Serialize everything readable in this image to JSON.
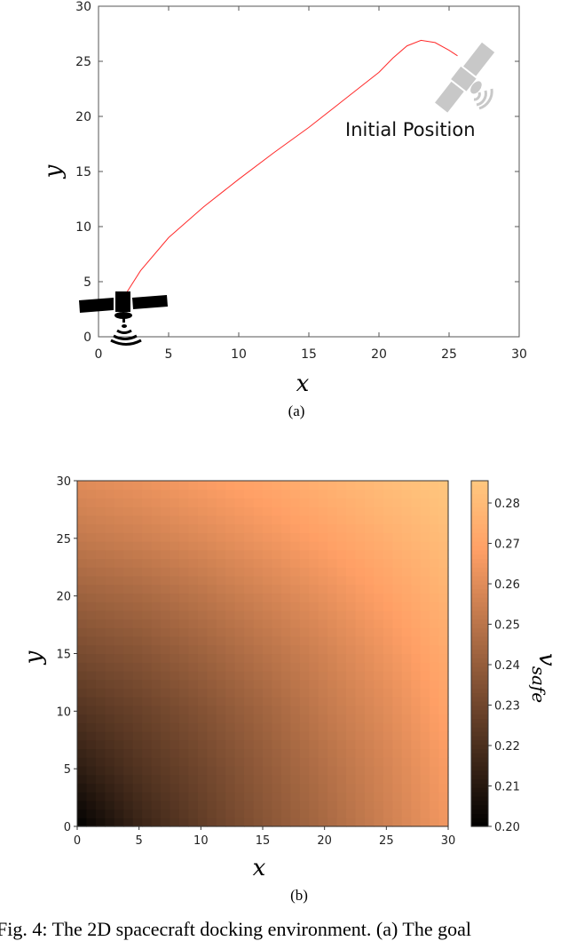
{
  "chart_data": [
    {
      "type": "line",
      "panel_label": "(a)",
      "xlabel": "x",
      "ylabel": "y",
      "xlim": [
        0,
        30
      ],
      "ylim": [
        0,
        30
      ],
      "xticks": [
        "0",
        "5",
        "10",
        "15",
        "20",
        "25",
        "30"
      ],
      "yticks": [
        "0",
        "5",
        "10",
        "15",
        "20",
        "25",
        "30"
      ],
      "grid": false,
      "series": [
        {
          "color": "#ff2a2a",
          "x": [
            2,
            3,
            5,
            7.5,
            10,
            12.5,
            15,
            17.5,
            20,
            21,
            22,
            23,
            24,
            25,
            25.6
          ],
          "y": [
            4,
            6,
            9,
            11.8,
            14.3,
            16.7,
            19,
            21.5,
            24,
            25.3,
            26.4,
            26.9,
            26.7,
            26,
            25.5
          ]
        }
      ],
      "annotations": [
        {
          "text": "Initial Position",
          "icon": "satellite-icon-gray"
        },
        {
          "text": "",
          "icon": "satellite-icon-black"
        }
      ]
    },
    {
      "type": "heatmap",
      "panel_label": "(b)",
      "xlabel": "x",
      "ylabel": "y",
      "xlim": [
        0,
        30
      ],
      "ylim": [
        0,
        30
      ],
      "xticks": [
        "0",
        "5",
        "10",
        "15",
        "20",
        "25",
        "30"
      ],
      "yticks": [
        "0",
        "5",
        "10",
        "15",
        "20",
        "25",
        "30"
      ],
      "colormap": "copper",
      "colorbar": {
        "label": "v_safe",
        "label_main": "v",
        "label_sub": "safe",
        "range": [
          0.2,
          0.2855
        ],
        "ticks": [
          "0.20",
          "0.21",
          "0.22",
          "0.23",
          "0.24",
          "0.25",
          "0.26",
          "0.27",
          "0.28"
        ]
      },
      "grid_x": [
        0,
        5,
        10,
        15,
        20,
        25,
        30
      ],
      "grid_y": [
        0,
        5,
        10,
        15,
        20,
        25,
        30
      ],
      "values": [
        [
          0.2,
          0.215,
          0.226,
          0.236,
          0.245,
          0.255,
          0.265
        ],
        [
          0.212,
          0.222,
          0.23,
          0.239,
          0.248,
          0.257,
          0.267
        ],
        [
          0.222,
          0.228,
          0.235,
          0.243,
          0.252,
          0.26,
          0.27
        ],
        [
          0.232,
          0.236,
          0.242,
          0.249,
          0.256,
          0.264,
          0.273
        ],
        [
          0.242,
          0.245,
          0.25,
          0.256,
          0.262,
          0.269,
          0.277
        ],
        [
          0.252,
          0.255,
          0.259,
          0.264,
          0.269,
          0.275,
          0.281
        ],
        [
          0.26,
          0.263,
          0.267,
          0.271,
          0.276,
          0.281,
          0.285
        ]
      ]
    }
  ],
  "caption": "Fig. 4: The 2D spacecraft docking environment. (a) The goal"
}
